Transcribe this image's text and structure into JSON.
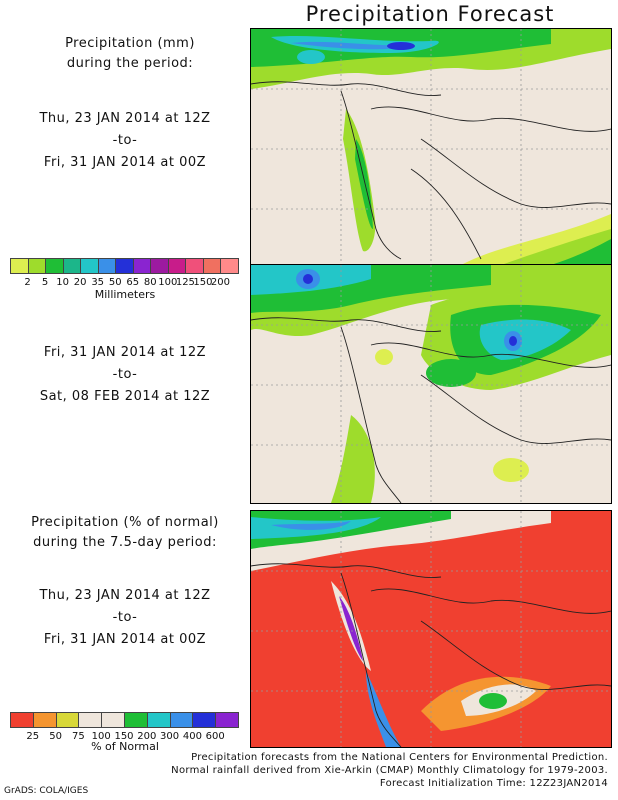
{
  "title": "Precipitation Forecast",
  "panel1_header": [
    "Precipitation (mm)",
    "during the period:"
  ],
  "panel1_period": {
    "start": "Thu, 23 JAN 2014 at 12Z",
    "sep": "-to-",
    "end": "Fri, 31 JAN 2014 at 00Z"
  },
  "panel2_period": {
    "start": "Fri, 31 JAN 2014 at 12Z",
    "sep": "-to-",
    "end": "Sat, 08 FEB 2014 at 12Z"
  },
  "panel3_header": [
    "Precipitation (% of normal)",
    "during the 7.5-day period:"
  ],
  "panel3_period": {
    "start": "Thu, 23 JAN 2014 at 12Z",
    "sep": "-to-",
    "end": "Fri, 31 JAN 2014 at 00Z"
  },
  "mm_scale": {
    "unit": "Millimeters",
    "ticks": [
      "2",
      "5",
      "10",
      "20",
      "35",
      "50",
      "65",
      "80",
      "100",
      "125",
      "150",
      "200"
    ],
    "colors": [
      "#ddee50",
      "#9edc2c",
      "#1fbe36",
      "#1cb68a",
      "#23c6c8",
      "#3a90e8",
      "#2430d8",
      "#8a24d0",
      "#9c1aa0",
      "#c81c8a",
      "#f0507a",
      "#f07060",
      "#ff8a8a"
    ]
  },
  "pct_scale": {
    "unit": "% of Normal",
    "ticks": [
      "25",
      "50",
      "75",
      "100",
      "150",
      "200",
      "300",
      "400",
      "600"
    ],
    "colors": [
      "#f04030",
      "#f59530",
      "#d8d838",
      "#efe6dc",
      "#efe6dc",
      "#1fbe36",
      "#23c6c8",
      "#3a90e8",
      "#2430d8",
      "#8a24d0"
    ]
  },
  "footer": [
    "Precipitation forecasts from the National Centers for Environmental Prediction.",
    "Normal rainfall derived from Xie-Arkin (CMAP) Monthly Climatology for 1979-2003.",
    "Forecast Initialization Time: 12Z23JAN2014"
  ],
  "credit": "GrADS: COLA/IGES"
}
